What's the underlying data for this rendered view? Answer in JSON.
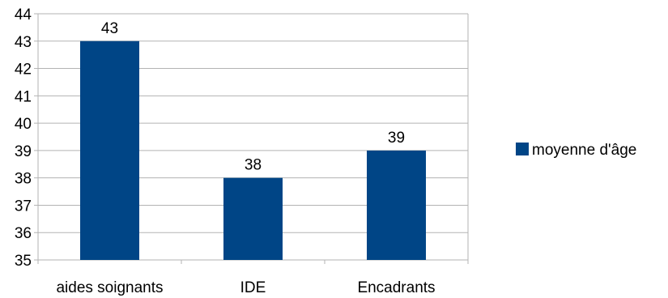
{
  "colors": {
    "series": "#004586",
    "grid": "#b3b3b3",
    "axis": "#b3b3b3"
  },
  "chart_data": {
    "type": "bar",
    "categories": [
      "aides soignants",
      "IDE",
      "Encadrants"
    ],
    "series": [
      {
        "name": "moyenne d'âge",
        "values": [
          43,
          38,
          39
        ]
      }
    ],
    "ylim": [
      35,
      44
    ],
    "yticks": [
      "35",
      "36",
      "37",
      "38",
      "39",
      "40",
      "41",
      "42",
      "43",
      "44"
    ],
    "data_labels": [
      "43",
      "38",
      "39"
    ],
    "grid": true,
    "legend": "right"
  }
}
